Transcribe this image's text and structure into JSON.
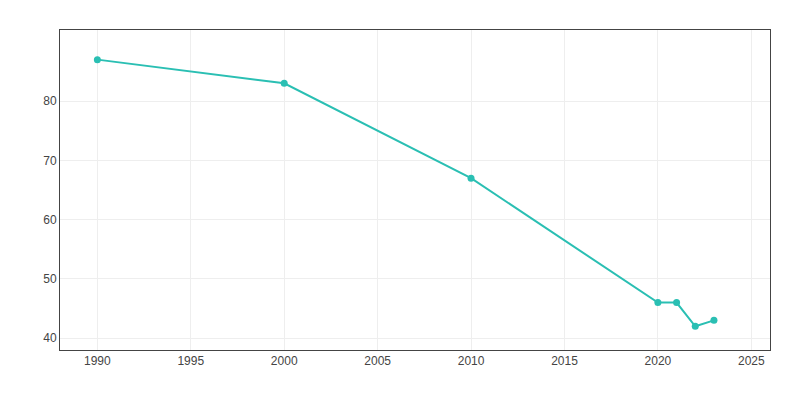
{
  "chart_data": {
    "type": "line",
    "x": [
      1990,
      2000,
      2010,
      2020,
      2021,
      2022,
      2023
    ],
    "values": [
      87,
      83,
      67,
      46,
      46,
      42,
      43
    ],
    "color": "#2abfb3",
    "marker": "circle",
    "xlim": [
      1988,
      2026
    ],
    "ylim": [
      38,
      92
    ],
    "xticks": [
      1990,
      1995,
      2000,
      2005,
      2010,
      2015,
      2020,
      2025
    ],
    "yticks": [
      40,
      50,
      60,
      70,
      80
    ],
    "grid": true
  }
}
